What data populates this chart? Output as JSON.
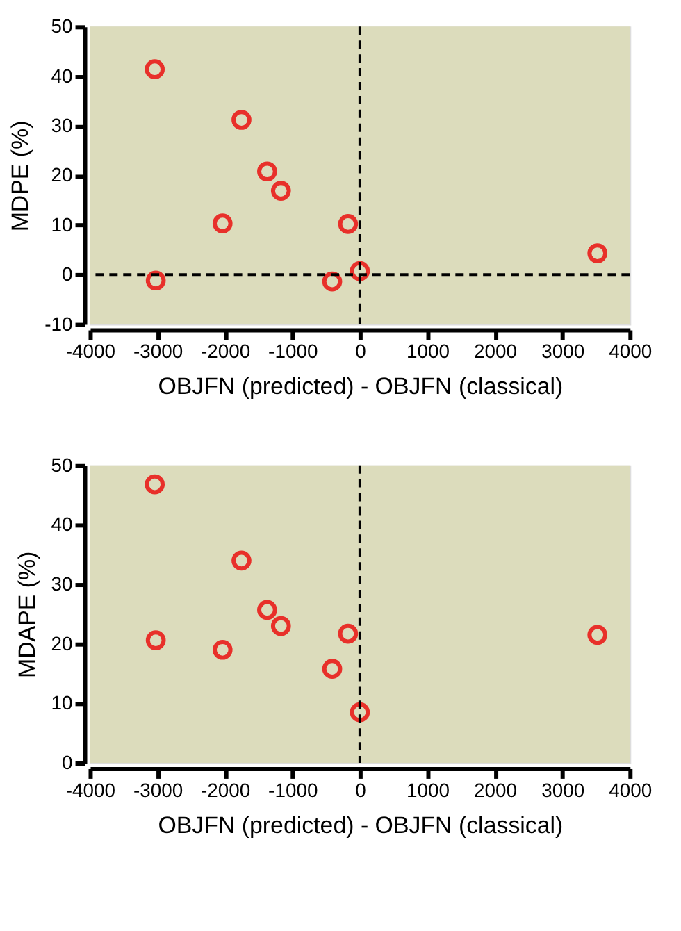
{
  "chart_data": [
    {
      "type": "scatter",
      "xlabel": "OBJFN (predicted) - OBJFN (classical)",
      "ylabel": "MDPE (%)",
      "xlim": [
        -4000,
        4000
      ],
      "xticks": [
        -4000,
        -3000,
        -2000,
        -1000,
        0,
        1000,
        2000,
        3000,
        4000
      ],
      "ylim": [
        -10,
        50
      ],
      "yticks": [
        -10,
        0,
        10,
        20,
        30,
        40,
        50
      ],
      "marker": "circle",
      "grid": false,
      "series": [
        {
          "color": "#e8302a",
          "x": [
            -3040,
            -3025,
            -2035,
            -1755,
            -1375,
            -1170,
            -410,
            -175,
            0,
            3520
          ],
          "values": [
            41.4,
            -1.2,
            10.3,
            31.2,
            20.8,
            16.9,
            -1.4,
            10.2,
            0.7,
            4.3
          ]
        }
      ],
      "ref_lines": [
        {
          "axis": "y",
          "value": 0,
          "line_style": "dashed",
          "color": "#000000"
        },
        {
          "axis": "x",
          "value": 0,
          "line_style": "dashed",
          "color": "#000000"
        }
      ]
    },
    {
      "type": "scatter",
      "xlabel": "OBJFN (predicted) - OBJFN (classical)",
      "ylabel": "MDAPE (%)",
      "xlim": [
        -4000,
        4000
      ],
      "xticks": [
        -4000,
        -3000,
        -2000,
        -1000,
        0,
        1000,
        2000,
        3000,
        4000
      ],
      "ylim": [
        0,
        50
      ],
      "yticks": [
        0,
        10,
        20,
        30,
        40,
        50
      ],
      "marker": "circle",
      "grid": false,
      "series": [
        {
          "color": "#e8302a",
          "x": [
            -3040,
            -3025,
            -2035,
            -1755,
            -1375,
            -1170,
            -410,
            -175,
            0,
            3520
          ],
          "values": [
            46.8,
            20.6,
            19.0,
            34.0,
            25.7,
            23.0,
            15.8,
            21.7,
            8.5,
            21.5
          ]
        }
      ],
      "ref_lines": [
        {
          "axis": "x",
          "value": 0,
          "line_style": "dashed",
          "color": "#000000"
        }
      ]
    }
  ]
}
